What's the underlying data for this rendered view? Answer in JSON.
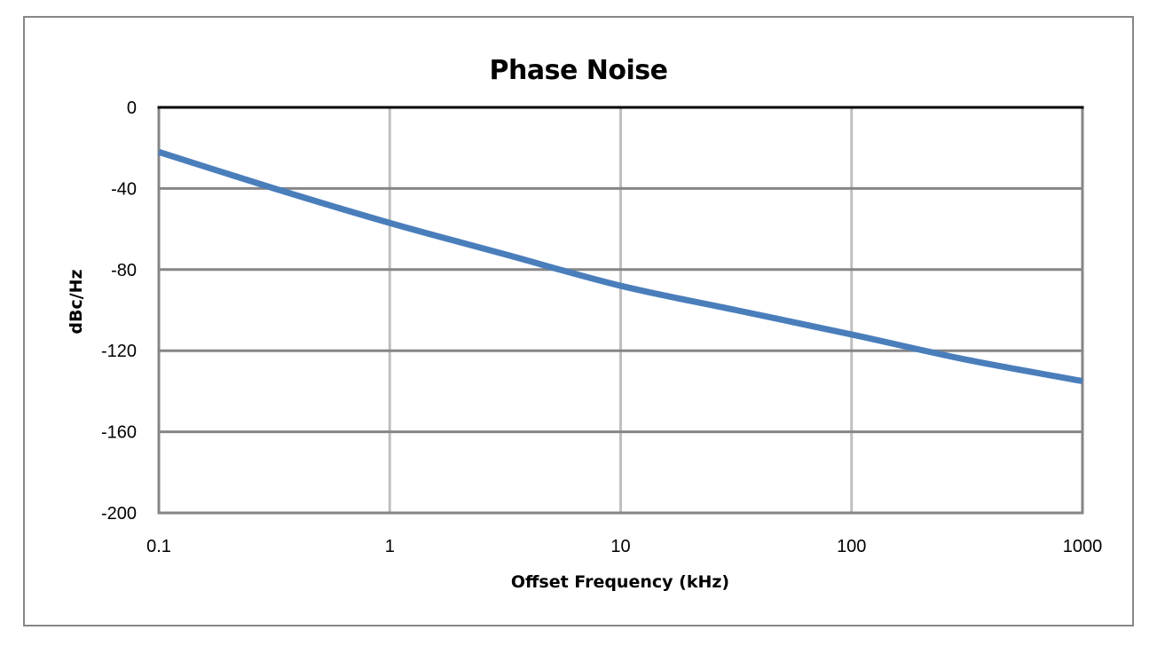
{
  "chart_data": {
    "type": "line",
    "title": "Phase Noise",
    "xlabel": "Offset Frequency (kHz)",
    "ylabel": "dBc/Hz",
    "xscale": "log",
    "xlim": [
      0.1,
      1000
    ],
    "ylim": [
      -200,
      0
    ],
    "xticks": [
      "0.1",
      "1",
      "10",
      "100",
      "1000"
    ],
    "yticks": [
      "0",
      "-40",
      "-80",
      "-120",
      "-160",
      "-200"
    ],
    "grid": {
      "x": true,
      "y": true
    },
    "legend": null,
    "series": [
      {
        "name": "Phase Noise",
        "color": "#4a7ebb",
        "x": [
          0.1,
          0.316,
          1,
          3.16,
          10,
          31.6,
          100,
          316,
          1000
        ],
        "y": [
          -22,
          -40,
          -57,
          -72.5,
          -88,
          -100,
          -112,
          -124.5,
          -135
        ]
      }
    ]
  },
  "colors": {
    "frame": "#868686",
    "hgrid": "#868686",
    "vgrid": "#bfbfbf",
    "top_axis": "#000000"
  }
}
